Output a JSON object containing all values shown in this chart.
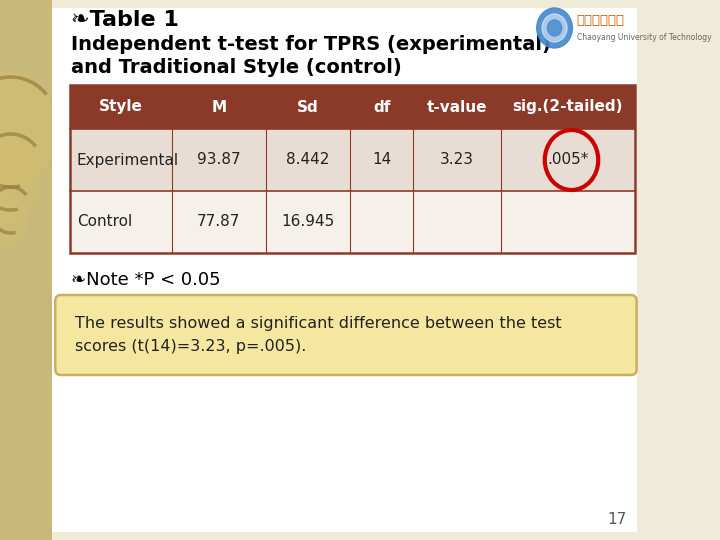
{
  "bg_color": "#f0ead8",
  "slide_bg": "#ffffff",
  "title_line1": "❧Table 1",
  "title_line2": "Independent t-test for TPRS (experimental)",
  "title_line3": "and Traditional Style (control)",
  "title_color": "#000000",
  "header_bg": "#8B3A2A",
  "header_text_color": "#ffffff",
  "headers": [
    "Style",
    "M",
    "Sd",
    "df",
    "t-value",
    "sig.(2-tailed)"
  ],
  "row1": [
    "Experimental",
    "93.87",
    "8.442",
    "14",
    "3.23",
    ".005*"
  ],
  "row2": [
    "Control",
    "77.87",
    "16.945",
    "",
    "",
    ""
  ],
  "row1_bg": "#e8ddd5",
  "row2_bg": "#f5f0ea",
  "table_border_color": "#8B3A2A",
  "note_text": "❧Note *P < 0.05",
  "note_color": "#000000",
  "result_box_text": "The results showed a significant difference between the test\nscores (t(14)=3.23, p=.005).",
  "result_box_bg": "#f5e6a0",
  "result_box_border": "#c8b060",
  "circle_color": "#cc0000",
  "page_number": "17",
  "left_decoration_color": "#c8b87a",
  "university_name": "朝陽科技大學",
  "university_sub": "Chaoyang University of Technology"
}
